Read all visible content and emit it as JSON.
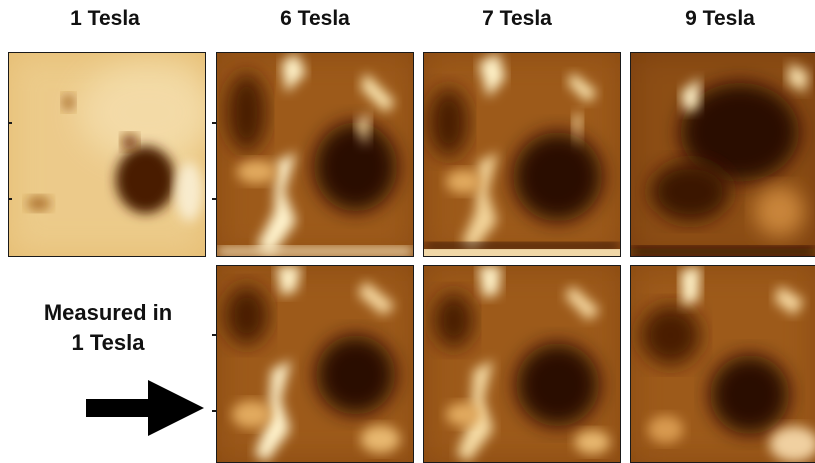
{
  "columns": [
    {
      "label": "1 Tesla"
    },
    {
      "label": "6 Tesla"
    },
    {
      "label": "7 Tesla"
    },
    {
      "label": "9 Tesla"
    }
  ],
  "side_label": {
    "line1": "Measured in",
    "line2": "1 Tesla"
  },
  "colors": {
    "dark": "#2a0a00",
    "mid": "#8a4a10",
    "light": "#f4e0b0",
    "base_1T": "#e8c27a"
  }
}
